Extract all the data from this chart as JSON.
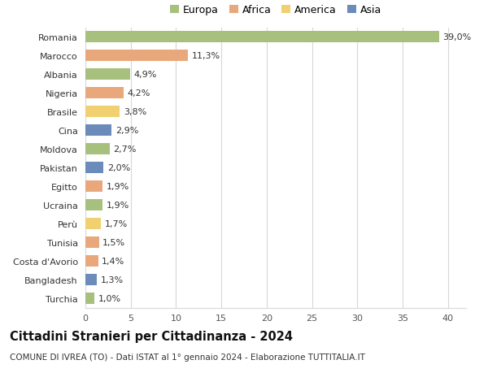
{
  "countries": [
    "Romania",
    "Marocco",
    "Albania",
    "Nigeria",
    "Brasile",
    "Cina",
    "Moldova",
    "Pakistan",
    "Egitto",
    "Ucraina",
    "Perù",
    "Tunisia",
    "Costa d'Avorio",
    "Bangladesh",
    "Turchia"
  ],
  "values": [
    39.0,
    11.3,
    4.9,
    4.2,
    3.8,
    2.9,
    2.7,
    2.0,
    1.9,
    1.9,
    1.7,
    1.5,
    1.4,
    1.3,
    1.0
  ],
  "labels": [
    "39,0%",
    "11,3%",
    "4,9%",
    "4,2%",
    "3,8%",
    "2,9%",
    "2,7%",
    "2,0%",
    "1,9%",
    "1,9%",
    "1,7%",
    "1,5%",
    "1,4%",
    "1,3%",
    "1,0%"
  ],
  "continents": [
    "Europa",
    "Africa",
    "Europa",
    "Africa",
    "America",
    "Asia",
    "Europa",
    "Asia",
    "Africa",
    "Europa",
    "America",
    "Africa",
    "Africa",
    "Asia",
    "Europa"
  ],
  "continent_colors": {
    "Europa": "#a8c07e",
    "Africa": "#e8a87c",
    "America": "#f0d070",
    "Asia": "#6b8cba"
  },
  "legend_order": [
    "Europa",
    "Africa",
    "America",
    "Asia"
  ],
  "title": "Cittadini Stranieri per Cittadinanza - 2024",
  "subtitle": "COMUNE DI IVREA (TO) - Dati ISTAT al 1° gennaio 2024 - Elaborazione TUTTITALIA.IT",
  "xlim": [
    0,
    42
  ],
  "xticks": [
    0,
    5,
    10,
    15,
    20,
    25,
    30,
    35,
    40
  ],
  "background_color": "#ffffff",
  "grid_color": "#d8d8d8",
  "bar_height": 0.6,
  "label_fontsize": 8,
  "tick_fontsize": 8,
  "title_fontsize": 10.5,
  "subtitle_fontsize": 7.5
}
